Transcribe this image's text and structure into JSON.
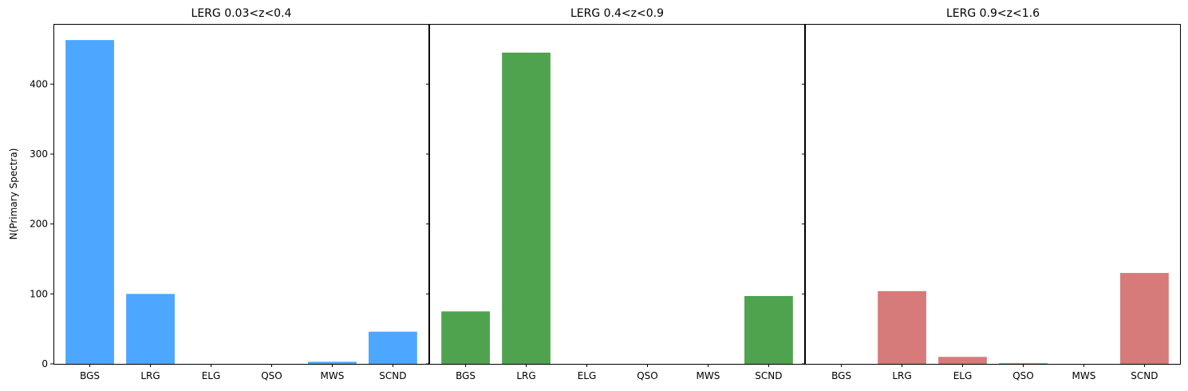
{
  "figure": {
    "ylabel": "N(Primary Spectra)"
  },
  "chart_data": [
    {
      "type": "bar",
      "title": "LERG 0.03<z<0.4",
      "categories": [
        "BGS",
        "LRG",
        "ELG",
        "QSO",
        "MWS",
        "SCND"
      ],
      "values": [
        463,
        100,
        0,
        0,
        3,
        46
      ],
      "color": "#4da6ff",
      "ylabel": "N(Primary Spectra)",
      "ylim": [
        0,
        486
      ],
      "yticks": [
        0,
        100,
        200,
        300,
        400
      ],
      "ytick_labels": [
        "0",
        "100",
        "200",
        "300",
        "400"
      ],
      "grid": false
    },
    {
      "type": "bar",
      "title": "LERG 0.4<z<0.9",
      "categories": [
        "BGS",
        "LRG",
        "ELG",
        "QSO",
        "MWS",
        "SCND"
      ],
      "values": [
        75,
        445,
        0,
        0,
        0,
        97
      ],
      "color": "#4fa34f",
      "ylabel": "",
      "ylim": [
        0,
        486
      ],
      "yticks": [
        0,
        100,
        200,
        300,
        400
      ],
      "ytick_labels": [],
      "grid": false
    },
    {
      "type": "bar",
      "title": "LERG 0.9<z<1.6",
      "categories": [
        "BGS",
        "LRG",
        "ELG",
        "QSO",
        "MWS",
        "SCND"
      ],
      "values": [
        0,
        104,
        10,
        1,
        0,
        130
      ],
      "color": "#d67a7a",
      "ylabel": "",
      "ylim": [
        0,
        486
      ],
      "yticks": [
        0,
        100,
        200,
        300,
        400
      ],
      "ytick_labels": [],
      "grid": false
    }
  ]
}
